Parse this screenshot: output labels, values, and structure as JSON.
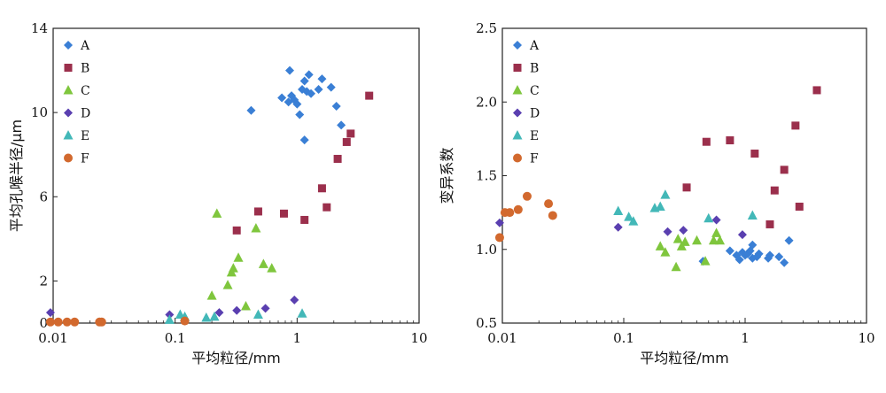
{
  "chart_data": [
    {
      "type": "scatter",
      "title": "",
      "xlabel": "平均粒径/mm",
      "ylabel": "平均孔喉半径/μm",
      "xscale": "log",
      "xlim": [
        0.01,
        10
      ],
      "ylim": [
        0,
        14
      ],
      "xticks": [
        "0.01",
        "0.1",
        "1",
        "10"
      ],
      "yticks": [
        "0",
        "2",
        "6",
        "10",
        "14"
      ],
      "legend_position": "top-left",
      "series": [
        {
          "name": "A",
          "color": "#3a7fd5",
          "marker": "diamond",
          "points": [
            [
              0.42,
              10.1
            ],
            [
              0.75,
              10.7
            ],
            [
              0.85,
              10.5
            ],
            [
              0.87,
              12.0
            ],
            [
              0.9,
              10.8
            ],
            [
              0.95,
              10.6
            ],
            [
              1.0,
              10.4
            ],
            [
              1.05,
              9.9
            ],
            [
              1.1,
              11.1
            ],
            [
              1.15,
              8.7
            ],
            [
              1.15,
              11.5
            ],
            [
              1.2,
              11.0
            ],
            [
              1.25,
              11.8
            ],
            [
              1.3,
              10.9
            ],
            [
              1.5,
              11.1
            ],
            [
              1.6,
              11.6
            ],
            [
              1.9,
              11.2
            ],
            [
              2.1,
              10.3
            ],
            [
              2.3,
              9.4
            ]
          ]
        },
        {
          "name": "B",
          "color": "#9b2f4c",
          "marker": "square",
          "points": [
            [
              0.32,
              4.4
            ],
            [
              0.48,
              5.3
            ],
            [
              0.78,
              5.2
            ],
            [
              1.15,
              4.9
            ],
            [
              1.6,
              6.4
            ],
            [
              1.75,
              5.5
            ],
            [
              2.15,
              7.8
            ],
            [
              2.55,
              8.6
            ],
            [
              2.75,
              9.0
            ],
            [
              3.9,
              10.8
            ]
          ]
        },
        {
          "name": "C",
          "color": "#7fc63d",
          "marker": "triangle",
          "points": [
            [
              0.2,
              1.3
            ],
            [
              0.22,
              5.2
            ],
            [
              0.27,
              1.8
            ],
            [
              0.29,
              2.4
            ],
            [
              0.3,
              2.6
            ],
            [
              0.33,
              3.1
            ],
            [
              0.38,
              0.8
            ],
            [
              0.46,
              4.5
            ],
            [
              0.53,
              2.8
            ],
            [
              0.62,
              2.6
            ]
          ]
        },
        {
          "name": "D",
          "color": "#5a3fb0",
          "marker": "diamond",
          "points": [
            [
              0.0095,
              0.5
            ],
            [
              0.09,
              0.4
            ],
            [
              0.23,
              0.5
            ],
            [
              0.32,
              0.6
            ],
            [
              0.55,
              0.7
            ],
            [
              0.95,
              1.1
            ]
          ]
        },
        {
          "name": "E",
          "color": "#43b8b8",
          "marker": "triangle",
          "points": [
            [
              0.09,
              0.15
            ],
            [
              0.11,
              0.4
            ],
            [
              0.12,
              0.3
            ],
            [
              0.18,
              0.25
            ],
            [
              0.21,
              0.3
            ],
            [
              0.48,
              0.4
            ],
            [
              1.1,
              0.45
            ]
          ]
        },
        {
          "name": "F",
          "color": "#d2692e",
          "marker": "circle",
          "points": [
            [
              0.0095,
              0.05
            ],
            [
              0.011,
              0.05
            ],
            [
              0.013,
              0.05
            ],
            [
              0.015,
              0.05
            ],
            [
              0.024,
              0.05
            ],
            [
              0.025,
              0.05
            ],
            [
              0.12,
              0.1
            ]
          ]
        }
      ]
    },
    {
      "type": "scatter",
      "title": "",
      "xlabel": "平均粒径/mm",
      "ylabel": "变异系数",
      "xscale": "log",
      "xlim": [
        0.01,
        10
      ],
      "ylim": [
        0.5,
        2.5
      ],
      "xticks": [
        "0.01",
        "0.1",
        "1",
        "10"
      ],
      "yticks": [
        "0.5",
        "1.0",
        "1.5",
        "2.0",
        "2.5"
      ],
      "legend_position": "top-left",
      "series": [
        {
          "name": "A",
          "color": "#3a7fd5",
          "marker": "diamond",
          "points": [
            [
              0.45,
              0.92
            ],
            [
              0.75,
              0.99
            ],
            [
              0.85,
              0.96
            ],
            [
              0.9,
              0.93
            ],
            [
              0.95,
              0.98
            ],
            [
              1.0,
              0.96
            ],
            [
              1.05,
              0.97
            ],
            [
              1.1,
              0.99
            ],
            [
              1.15,
              0.94
            ],
            [
              1.15,
              1.03
            ],
            [
              1.25,
              0.95
            ],
            [
              1.3,
              0.97
            ],
            [
              1.55,
              0.94
            ],
            [
              1.6,
              0.96
            ],
            [
              1.9,
              0.95
            ],
            [
              2.1,
              0.91
            ],
            [
              2.3,
              1.06
            ]
          ]
        },
        {
          "name": "B",
          "color": "#9b2f4c",
          "marker": "square",
          "points": [
            [
              0.33,
              1.42
            ],
            [
              0.48,
              1.73
            ],
            [
              0.75,
              1.74
            ],
            [
              1.2,
              1.65
            ],
            [
              1.6,
              1.17
            ],
            [
              1.75,
              1.4
            ],
            [
              2.1,
              1.54
            ],
            [
              2.6,
              1.84
            ],
            [
              2.8,
              1.29
            ],
            [
              3.9,
              2.08
            ]
          ]
        },
        {
          "name": "C",
          "color": "#7fc63d",
          "marker": "triangle",
          "points": [
            [
              0.2,
              1.02
            ],
            [
              0.22,
              0.98
            ],
            [
              0.27,
              0.88
            ],
            [
              0.28,
              1.07
            ],
            [
              0.3,
              1.02
            ],
            [
              0.32,
              1.05
            ],
            [
              0.4,
              1.06
            ],
            [
              0.47,
              0.92
            ],
            [
              0.55,
              1.06
            ],
            [
              0.58,
              1.11
            ],
            [
              0.62,
              1.06
            ]
          ]
        },
        {
          "name": "D",
          "color": "#5a3fb0",
          "marker": "diamond",
          "points": [
            [
              0.0095,
              1.18
            ],
            [
              0.09,
              1.15
            ],
            [
              0.23,
              1.12
            ],
            [
              0.31,
              1.13
            ],
            [
              0.58,
              1.2
            ],
            [
              0.95,
              1.1
            ]
          ]
        },
        {
          "name": "E",
          "color": "#43b8b8",
          "marker": "triangle",
          "points": [
            [
              0.09,
              1.26
            ],
            [
              0.11,
              1.22
            ],
            [
              0.12,
              1.19
            ],
            [
              0.18,
              1.28
            ],
            [
              0.2,
              1.29
            ],
            [
              0.22,
              1.37
            ],
            [
              0.5,
              1.21
            ],
            [
              1.15,
              1.23
            ]
          ]
        },
        {
          "name": "F",
          "color": "#d2692e",
          "marker": "circle",
          "points": [
            [
              0.0095,
              1.08
            ],
            [
              0.0105,
              1.25
            ],
            [
              0.0115,
              1.25
            ],
            [
              0.0135,
              1.27
            ],
            [
              0.016,
              1.36
            ],
            [
              0.024,
              1.31
            ],
            [
              0.026,
              1.23
            ]
          ]
        }
      ]
    }
  ]
}
